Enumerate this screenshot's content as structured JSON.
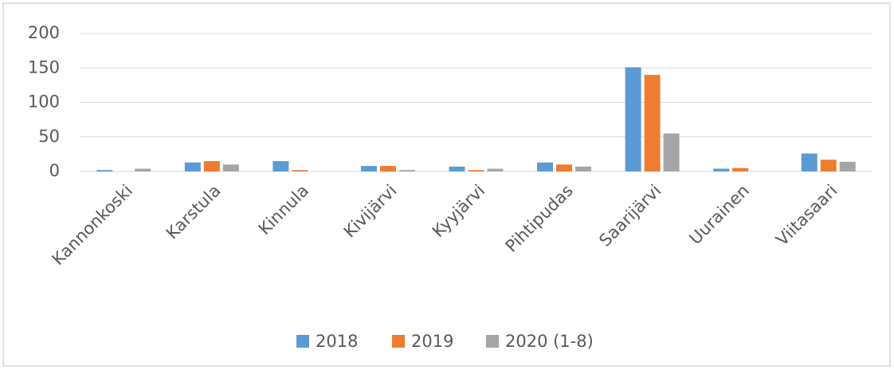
{
  "chart_data": {
    "type": "bar",
    "categories": [
      "Kannonkoski",
      "Karstula",
      "Kinnula",
      "Kivijärvi",
      "Kyyjärvi",
      "Pihtipudas",
      "Saarijärvi",
      "Uurainen",
      "Viitasaari"
    ],
    "series": [
      {
        "name": "2018",
        "color": "#5b9bd5",
        "values": [
          2,
          13,
          15,
          8,
          7,
          13,
          151,
          4,
          26
        ]
      },
      {
        "name": "2019",
        "color": "#ed7d31",
        "values": [
          0,
          15,
          2,
          8,
          2,
          10,
          140,
          5,
          17
        ]
      },
      {
        "name": "2020 (1-8)",
        "color": "#a5a5a5",
        "values": [
          4,
          10,
          0,
          2,
          4,
          7,
          55,
          0,
          14
        ]
      }
    ],
    "ylim": [
      0,
      200
    ],
    "yticks": [
      0,
      50,
      100,
      150,
      200
    ],
    "grid": true,
    "legend": "bottom"
  }
}
